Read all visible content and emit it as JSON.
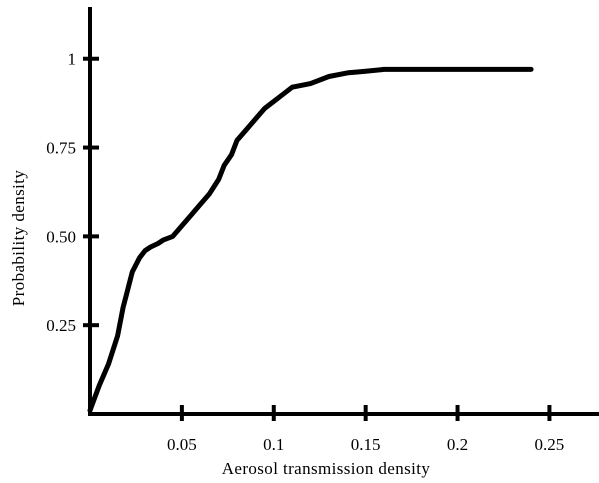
{
  "chart_data": {
    "type": "line",
    "title": "",
    "xlabel": "Aerosol transmission density",
    "ylabel": "Probability density",
    "xlim": [
      0,
      0.265
    ],
    "ylim": [
      0,
      1.14
    ],
    "grid": false,
    "x_ticks": [
      {
        "value": 0.05,
        "label": "0.05"
      },
      {
        "value": 0.1,
        "label": "0.1"
      },
      {
        "value": 0.15,
        "label": "0.15"
      },
      {
        "value": 0.2,
        "label": "0.2"
      },
      {
        "value": 0.25,
        "label": "0.25"
      }
    ],
    "y_ticks": [
      {
        "value": 0.25,
        "label": "0.25"
      },
      {
        "value": 0.5,
        "label": "0.50"
      },
      {
        "value": 0.75,
        "label": "0.75"
      },
      {
        "value": 1,
        "label": "1"
      }
    ],
    "series": [
      {
        "x": [
          0,
          0.005,
          0.01,
          0.015,
          0.018,
          0.02,
          0.023,
          0.027,
          0.03,
          0.033,
          0.037,
          0.04,
          0.045,
          0.05,
          0.055,
          0.06,
          0.065,
          0.07,
          0.073,
          0.077,
          0.08,
          0.085,
          0.09,
          0.095,
          0.1,
          0.105,
          0.11,
          0.12,
          0.13,
          0.14,
          0.15,
          0.16,
          0.18,
          0.2,
          0.22,
          0.24
        ],
        "y": [
          0.01,
          0.08,
          0.14,
          0.22,
          0.3,
          0.34,
          0.4,
          0.44,
          0.46,
          0.47,
          0.48,
          0.49,
          0.5,
          0.53,
          0.56,
          0.59,
          0.62,
          0.66,
          0.7,
          0.73,
          0.77,
          0.8,
          0.83,
          0.86,
          0.88,
          0.9,
          0.92,
          0.93,
          0.95,
          0.96,
          0.965,
          0.97,
          0.97,
          0.97,
          0.97,
          0.97
        ]
      }
    ]
  }
}
